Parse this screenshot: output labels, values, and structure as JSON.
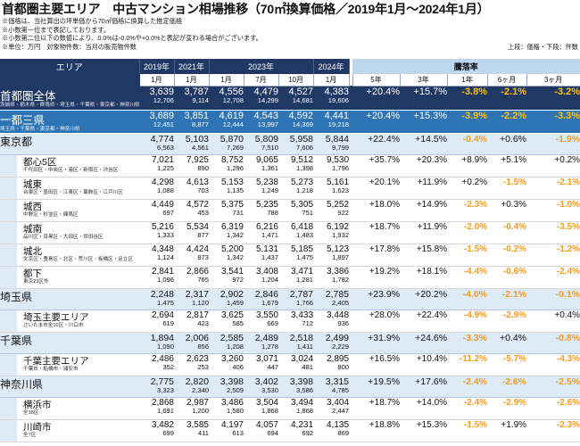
{
  "title": "首都圏主要エリア　中古マンション相場推移（70㎡換算価格／2019年1月～2024年1月）",
  "notes": [
    "※価格は、当社算出の坪単価から70㎡価格に換算した推定価格",
    "※小数第一位まで表記しております。",
    "※小数第二位以下の数値により、0.0%は-0.0%や+0.0%と表記が変わる場合がございます。"
  ],
  "unit_note": "※単位：万円　対象物件数：当月の販売物件数",
  "legend": "上段：価格・下段：件数",
  "header": {
    "area": "エリア",
    "years": [
      "2019年",
      "2021年",
      "2023年",
      "2024年"
    ],
    "rate": "騰落率",
    "months": [
      "1月",
      "1月",
      "1月",
      "7月",
      "10月",
      "1月"
    ],
    "periods": [
      "5年",
      "3年",
      "1年",
      "6ヶ月",
      "3ヶ月"
    ]
  },
  "colors": {
    "navy": "#1f3864",
    "blue": "#2f75b5",
    "light": "#ddebf7",
    "orange": "#f79a1e",
    "red": "#ff0000"
  },
  "rows": [
    {
      "level": "metro",
      "name": "首都圏全体",
      "sub": "茨城県・栃木県・群馬県・埼玉県・千葉県・東京都・神奈川県・山梨県",
      "prices": [
        "3,639",
        "3,787",
        "4,556",
        "4,479",
        "4,527",
        "4,383"
      ],
      "counts": [
        "12,706",
        "9,114",
        "12,708",
        "14,299",
        "14,681",
        "19,606"
      ],
      "rates": [
        "+20.4%",
        "+15.7%",
        "-3.8%",
        "-2.1%",
        "-3.2%"
      ]
    },
    {
      "level": "1to3",
      "name": "一都三県",
      "sub": "埼玉県・千葉県・東京都・神奈川県",
      "prices": [
        "3,689",
        "3,851",
        "4,619",
        "4,543",
        "4,592",
        "4,441"
      ],
      "counts": [
        "12,451",
        "8,877",
        "12,444",
        "13,997",
        "14,369",
        "19,218"
      ],
      "rates": [
        "+20.4%",
        "+15.3%",
        "-3.9%",
        "-2.2%",
        "-3.3%"
      ]
    },
    {
      "level": "pref",
      "name": "東京都",
      "sub": "",
      "prices": [
        "4,774",
        "5,103",
        "5,870",
        "5,809",
        "5,958",
        "5,844"
      ],
      "counts": [
        "6,563",
        "4,561",
        "7,269",
        "7,510",
        "7,606",
        "9,799"
      ],
      "rates": [
        "+22.4%",
        "+14.5%",
        "-0.4%",
        "+0.6%",
        "-1.9%"
      ]
    },
    {
      "level": "sub",
      "name": "都心5区",
      "sub": "千代田区・中央区・港区・新宿区・渋谷区",
      "prices": [
        "7,021",
        "7,925",
        "8,752",
        "9,065",
        "9,512",
        "9,530"
      ],
      "counts": [
        "1,225",
        "890",
        "1,296",
        "1,361",
        "1,398",
        "1,796"
      ],
      "rates": [
        "+35.7%",
        "+20.3%",
        "+8.9%",
        "+5.1%",
        "+0.2%"
      ]
    },
    {
      "level": "sub",
      "name": "城東",
      "sub": "台東区・墨田区・江東区・葛飾区・江戸川区",
      "prices": [
        "4,298",
        "4,613",
        "5,153",
        "5,238",
        "5,273",
        "5,161"
      ],
      "counts": [
        "1,088",
        "703",
        "1,135",
        "1,249",
        "1,218",
        "1,623"
      ],
      "rates": [
        "+20.1%",
        "+11.9%",
        "+0.2%",
        "-1.5%",
        "-2.1%"
      ]
    },
    {
      "level": "sub",
      "name": "城西",
      "sub": "中野区・杉並区・練馬区",
      "prices": [
        "4,449",
        "4,572",
        "5,375",
        "5,235",
        "5,305",
        "5,252"
      ],
      "counts": [
        "697",
        "453",
        "731",
        "788",
        "751",
        "922"
      ],
      "rates": [
        "+18.0%",
        "+14.9%",
        "-2.3%",
        "+0.3%",
        "-1.0%"
      ]
    },
    {
      "level": "sub",
      "name": "城南",
      "sub": "品川区・目黒区・大田区・世田谷区",
      "prices": [
        "5,216",
        "5,534",
        "6,319",
        "6,216",
        "6,418",
        "6,192"
      ],
      "counts": [
        "1,333",
        "877",
        "1,342",
        "1,471",
        "1,483",
        "1,932"
      ],
      "rates": [
        "+18.7%",
        "+11.9%",
        "-2.0%",
        "-0.4%",
        "-3.5%"
      ]
    },
    {
      "level": "sub",
      "name": "城北",
      "sub": "文京区・豊島区・北区・荒川区・板橋区・足立区",
      "prices": [
        "4,348",
        "4,424",
        "5,200",
        "5,131",
        "5,185",
        "5,123"
      ],
      "counts": [
        "1,124",
        "873",
        "1,342",
        "1,437",
        "1,475",
        "1,897"
      ],
      "rates": [
        "+17.8%",
        "+15.8%",
        "-1.5%",
        "-0.2%",
        "-1.2%"
      ]
    },
    {
      "level": "sub",
      "name": "都下",
      "sub": "東京23区外",
      "prices": [
        "2,841",
        "2,866",
        "3,541",
        "3,408",
        "3,471",
        "3,386"
      ],
      "counts": [
        "1,096",
        "765",
        "972",
        "1,204",
        "1,281",
        "1,782"
      ],
      "rates": [
        "+19.2%",
        "+18.1%",
        "-4.4%",
        "-0.6%",
        "-2.4%"
      ]
    },
    {
      "level": "pref",
      "name": "埼玉県",
      "sub": "",
      "prices": [
        "2,248",
        "2,317",
        "2,902",
        "2,846",
        "2,787",
        "2,785"
      ],
      "counts": [
        "1,475",
        "1,120",
        "1,459",
        "1,679",
        "1,766",
        "2,405"
      ],
      "rates": [
        "+23.9%",
        "+20.2%",
        "-4.0%",
        "-2.1%",
        "-0.1%"
      ]
    },
    {
      "level": "sub",
      "name": "埼玉主要エリア",
      "sub": "さいたま市全10区・川口市",
      "prices": [
        "2,694",
        "2,817",
        "3,625",
        "3,550",
        "3,433",
        "3,448"
      ],
      "counts": [
        "619",
        "423",
        "585",
        "669",
        "712",
        "936"
      ],
      "rates": [
        "+28.0%",
        "+22.4%",
        "-4.9%",
        "-2.9%",
        "+0.4%"
      ]
    },
    {
      "level": "pref",
      "name": "千葉県",
      "sub": "",
      "prices": [
        "1,894",
        "2,006",
        "2,585",
        "2,489",
        "2,518",
        "2,499"
      ],
      "counts": [
        "1,090",
        "856",
        "1,208",
        "1,278",
        "1,411",
        "2,229"
      ],
      "rates": [
        "+31.9%",
        "+24.6%",
        "-3.3%",
        "+0.4%",
        "-0.8%"
      ]
    },
    {
      "level": "sub",
      "name": "千葉主要エリア",
      "sub": "千葉市・船橋市・浦安市",
      "prices": [
        "2,486",
        "2,623",
        "3,260",
        "3,071",
        "3,024",
        "2,895"
      ],
      "counts": [
        "352",
        "253",
        "406",
        "447",
        "481",
        "800"
      ],
      "rates": [
        "+16.5%",
        "+10.4%",
        "-11.2%",
        "-5.7%",
        "-4.3%"
      ]
    },
    {
      "level": "pref",
      "name": "神奈川県",
      "sub": "",
      "prices": [
        "2,775",
        "2,820",
        "3,398",
        "3,402",
        "3,398",
        "3,315"
      ],
      "counts": [
        "3,323",
        "2,340",
        "2,509",
        "3,530",
        "3,586",
        "4,785"
      ],
      "rates": [
        "+19.5%",
        "+17.6%",
        "-2.4%",
        "-2.6%",
        "-2.5%"
      ]
    },
    {
      "level": "sub",
      "name": "横浜市",
      "sub": "全18区",
      "prices": [
        "2,868",
        "2,987",
        "3,486",
        "3,504",
        "3,494",
        "3,404"
      ],
      "counts": [
        "1,691",
        "1,200",
        "1,580",
        "1,868",
        "1,868",
        "2,447"
      ],
      "rates": [
        "+18.7%",
        "+14.0%",
        "-2.4%",
        "-2.9%",
        "-2.6%"
      ]
    },
    {
      "level": "sub",
      "name": "川崎市",
      "sub": "全7区",
      "prices": [
        "3,482",
        "3,585",
        "4,197",
        "4,057",
        "4,231",
        "4,135"
      ],
      "counts": [
        "699",
        "411",
        "613",
        "694",
        "692",
        "869"
      ],
      "rates": [
        "+18.8%",
        "+15.3%",
        "-1.5%",
        "+1.9%",
        "-2.3%"
      ]
    }
  ]
}
